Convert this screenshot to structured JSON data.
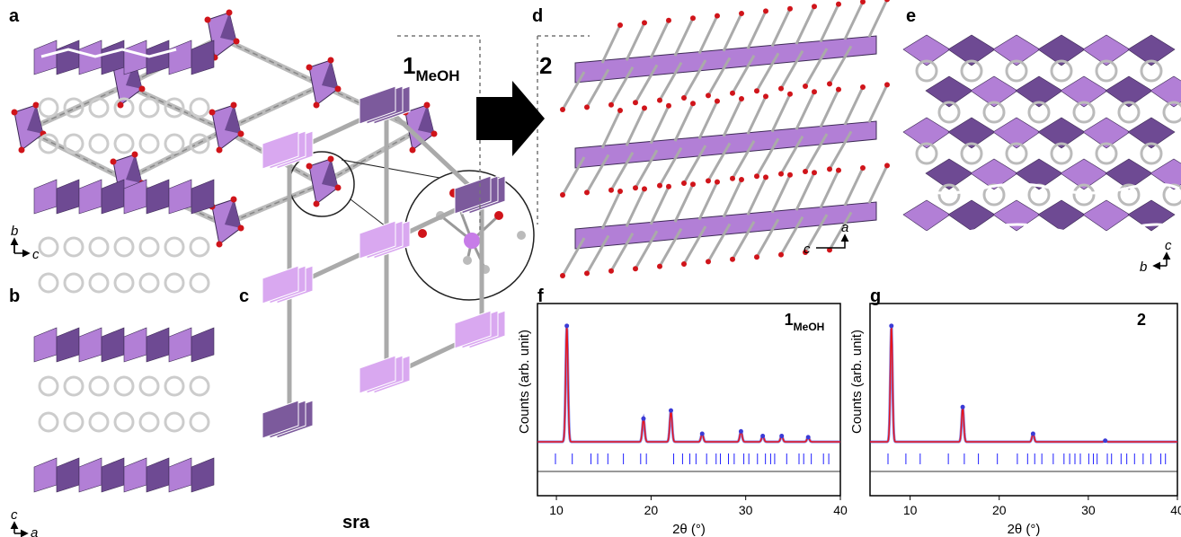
{
  "figure": {
    "panels": {
      "a": "a",
      "b": "b",
      "c": "c",
      "d": "d",
      "e": "e"
    },
    "axes_a": [
      "b",
      "c"
    ],
    "axes_b": [
      "c",
      "a"
    ],
    "axes_d": [
      "a",
      "c"
    ],
    "axes_e": [
      "c",
      "b"
    ],
    "transition": {
      "left_main": "1",
      "left_sub": "MeOH",
      "right": "2"
    },
    "net_name": "sra"
  },
  "chart_data": [
    {
      "type": "line",
      "panel": "f",
      "tag": "1",
      "tag_sub": "MeOH",
      "ylabel": "Counts (arb. unit)",
      "xlabel": "2θ (°)",
      "xlim": [
        8,
        40
      ],
      "xticks": [
        10,
        20,
        30,
        40
      ],
      "ylim": [
        0,
        1.1
      ],
      "x": [
        11.1,
        19.2,
        22.1,
        25.4,
        29.5,
        31.8,
        33.8,
        36.6
      ],
      "values": [
        1,
        0.2,
        0.27,
        0.07,
        0.09,
        0.05,
        0.05,
        0.04
      ],
      "color": "#e8141b",
      "marker_color": "#3b3bd6"
    },
    {
      "type": "line",
      "panel": "g",
      "tag": "2",
      "ylabel": "Counts (arb. unit)",
      "xlabel": "2θ (°)",
      "xlim": [
        5.5,
        40
      ],
      "xticks": [
        10,
        20,
        30,
        40
      ],
      "ylim": [
        0,
        1.1
      ],
      "x": [
        7.9,
        15.9,
        23.8,
        31.9
      ],
      "values": [
        1,
        0.3,
        0.07,
        0.01
      ],
      "color": "#e8141b",
      "marker_color": "#3b3bd6"
    }
  ]
}
